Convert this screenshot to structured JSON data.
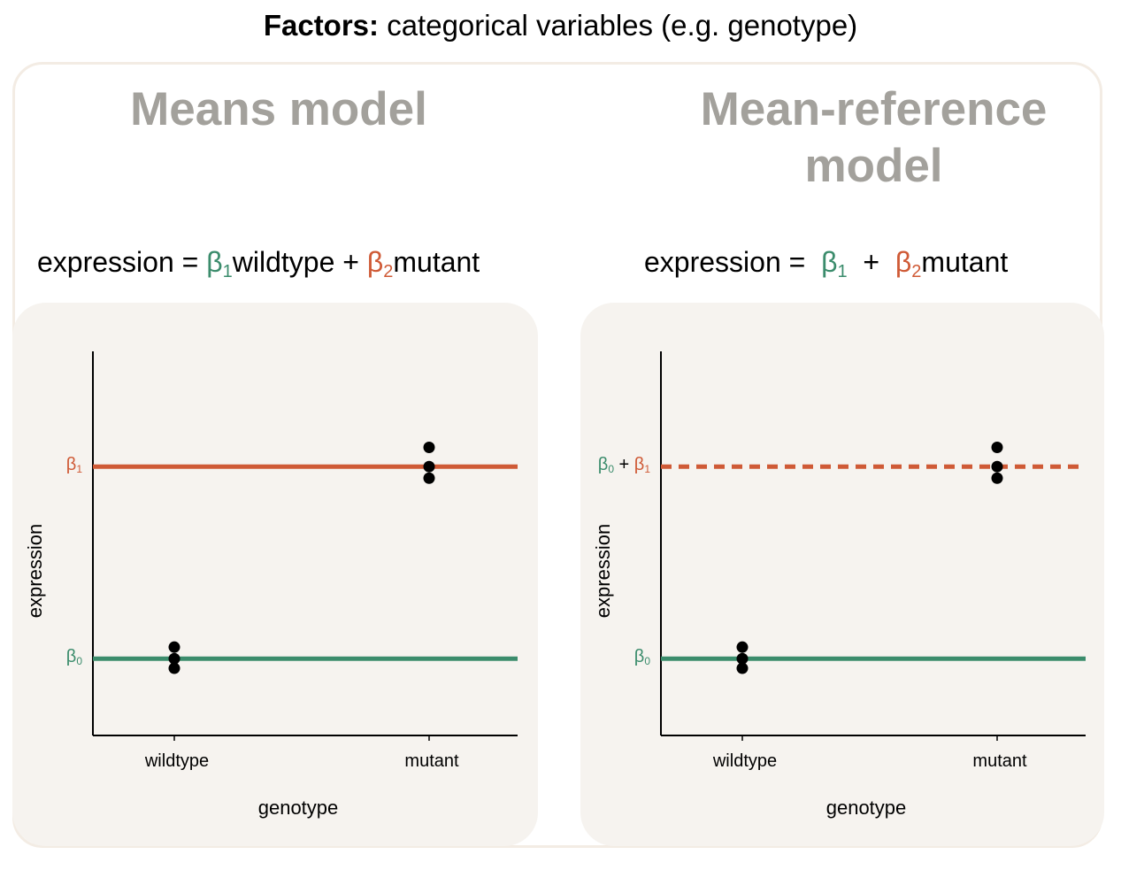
{
  "header": {
    "bold": "Factors:",
    "rest": " categorical variables (e.g. genotype)"
  },
  "colors": {
    "green": "#3b8c6c",
    "orange": "#cf5a36",
    "panel_bg": "#f6f3ef",
    "title_gray": "#a3a19c"
  },
  "left": {
    "title": "Means model",
    "equation": {
      "lhs": "expression =",
      "b1": "β",
      "b1_sub": "1",
      "term1": "wildtype +",
      "b2": "β",
      "b2_sub": "2",
      "term2": "mutant"
    },
    "chart_data": {
      "type": "scatter",
      "xlabel": "genotype",
      "ylabel": "expression",
      "categories": [
        "wildtype",
        "mutant"
      ],
      "ylim": [
        -0.4,
        1.6
      ],
      "points": {
        "wildtype": [
          0.06,
          0.0,
          -0.05
        ],
        "mutant": [
          1.1,
          1.0,
          0.94
        ]
      },
      "lines": [
        {
          "label": "β",
          "sub": "0",
          "y": 0,
          "color": "#3b8c6c",
          "style": "solid"
        },
        {
          "label": "β",
          "sub": "1",
          "y": 1,
          "color": "#cf5a36",
          "style": "solid"
        }
      ]
    }
  },
  "right": {
    "title_line1": "Mean-reference",
    "title_line2": "model",
    "equation": {
      "lhs": "expression  =",
      "b1": "β",
      "b1_sub": "1",
      "plus": "+",
      "b2": "β",
      "b2_sub": "2",
      "term2": "mutant"
    },
    "chart_data": {
      "type": "scatter",
      "xlabel": "genotype",
      "ylabel": "expression",
      "categories": [
        "wildtype",
        "mutant"
      ],
      "ylim": [
        -0.4,
        1.6
      ],
      "points": {
        "wildtype": [
          0.06,
          0.0,
          -0.05
        ],
        "mutant": [
          1.1,
          1.0,
          0.94
        ]
      },
      "lines": [
        {
          "label": "β",
          "sub": "0",
          "y": 0,
          "color": "#3b8c6c",
          "style": "solid"
        },
        {
          "label": "β",
          "sub": "1",
          "prefix": "β",
          "prefix_sub": "0",
          "joiner": "+",
          "y": 1,
          "color": "#cf5a36",
          "style": "dashed"
        }
      ]
    }
  }
}
